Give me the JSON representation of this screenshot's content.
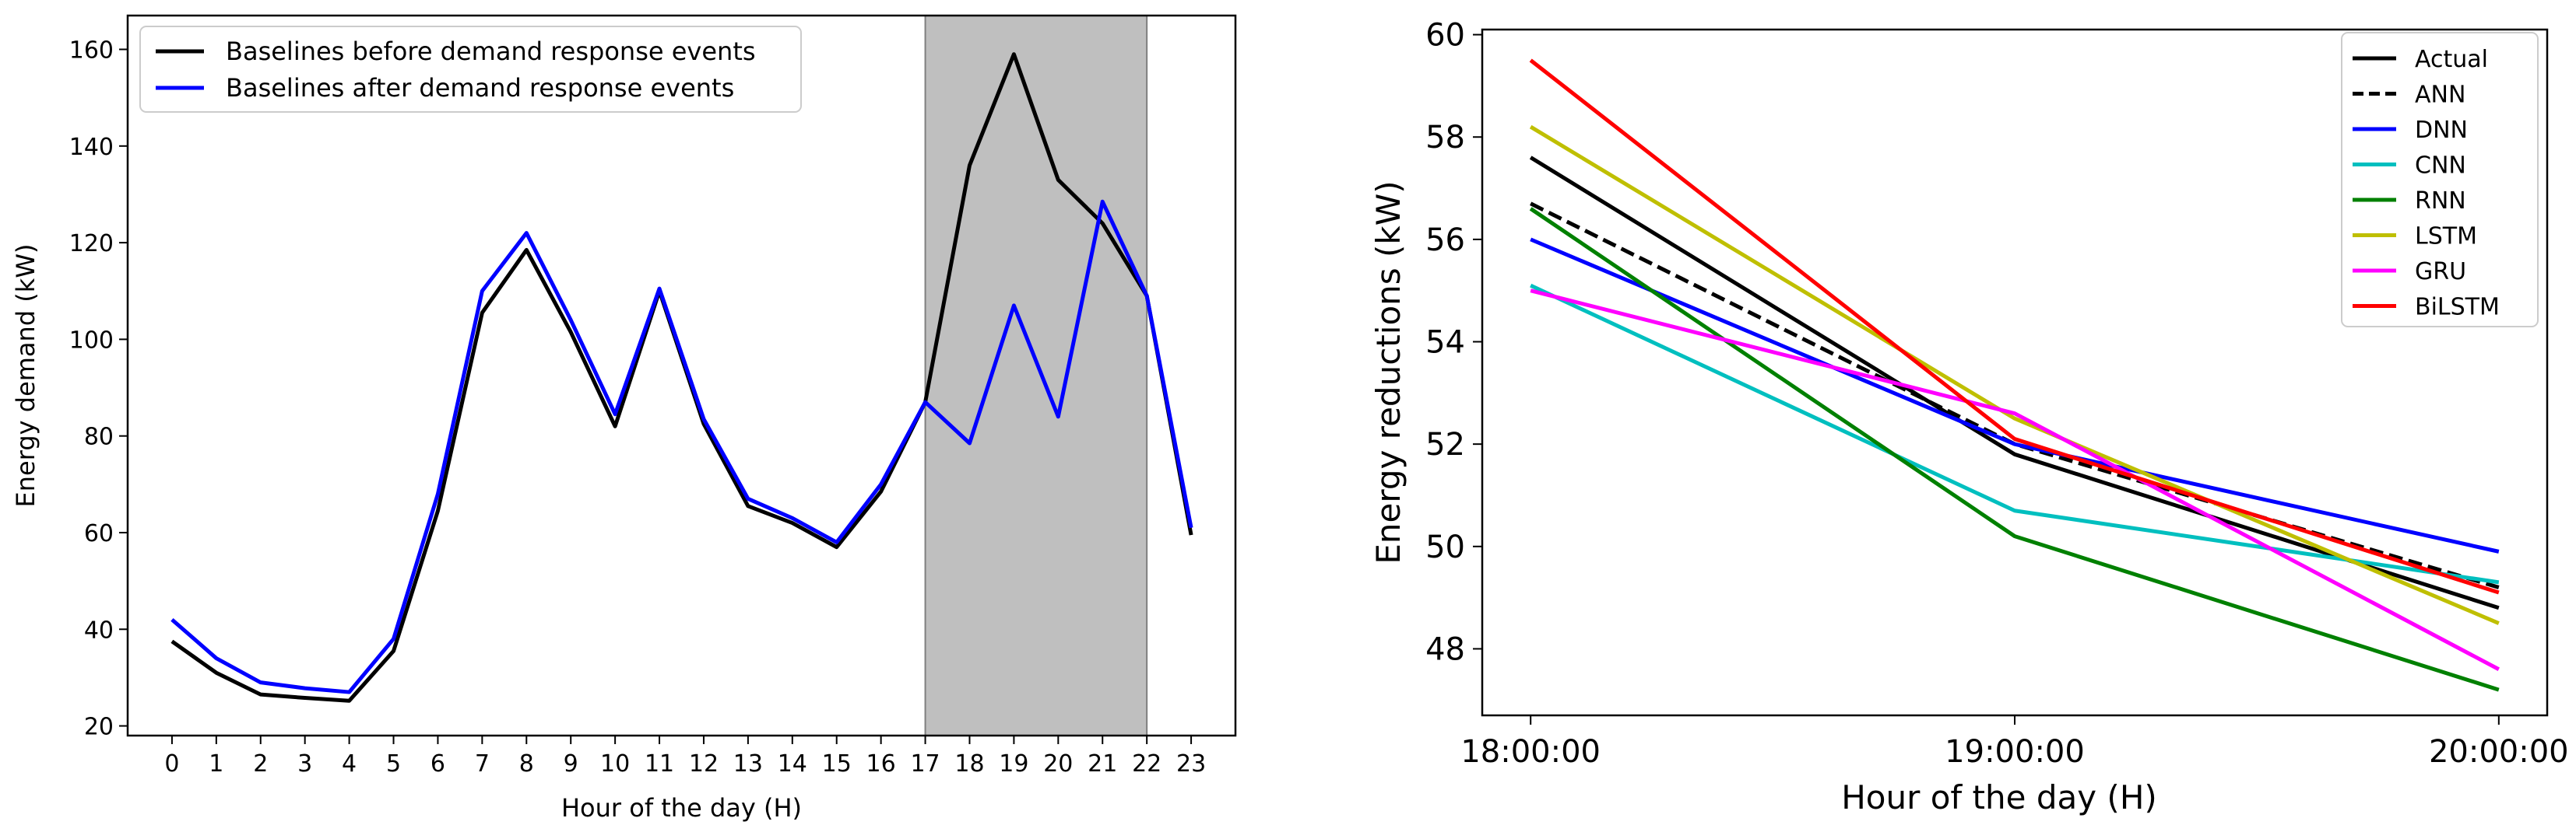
{
  "chart_data": [
    {
      "type": "line",
      "xlabel": "Hour of the day (H)",
      "ylabel": "Energy demand (kW)",
      "x": [
        0,
        1,
        2,
        3,
        4,
        5,
        6,
        7,
        8,
        9,
        10,
        11,
        12,
        13,
        14,
        15,
        16,
        17,
        18,
        19,
        20,
        21,
        22,
        23
      ],
      "xlim": [
        -1,
        24
      ],
      "ylim": [
        18,
        167
      ],
      "yticks": [
        20,
        40,
        60,
        80,
        100,
        120,
        140,
        160
      ],
      "grid": false,
      "legend": "top-left",
      "shaded_region": {
        "x_start": 17,
        "x_end": 22,
        "color": "#bfbfbf"
      },
      "series": [
        {
          "name": "Baselines before demand response events",
          "color": "#000000",
          "values": [
            37.5,
            31,
            26.5,
            25.8,
            25.2,
            35.5,
            64.5,
            105.5,
            118.5,
            101.5,
            82,
            110,
            82.5,
            65.5,
            62,
            57,
            68.5,
            87,
            136,
            159,
            133,
            124,
            109,
            59.5
          ]
        },
        {
          "name": "Baselines after demand response events",
          "color": "#0000ff",
          "values": [
            42,
            34,
            29,
            27.8,
            27,
            38,
            68,
            110,
            122,
            104,
            84.5,
            110.5,
            83.5,
            67,
            63,
            58,
            70,
            87,
            78.5,
            107,
            84,
            128.5,
            109,
            61
          ]
        }
      ]
    },
    {
      "type": "line",
      "xlabel": "Hour of the day (H)",
      "ylabel": "Energy reductions (kW)",
      "categories": [
        "18:00:00",
        "19:00:00",
        "20:00:00"
      ],
      "xlim": [
        -0.1,
        2.1
      ],
      "ylim": [
        46.7,
        60.1
      ],
      "yticks": [
        48,
        50,
        52,
        54,
        56,
        58,
        60
      ],
      "grid": false,
      "legend": "top-right",
      "series": [
        {
          "name": "Actual",
          "color": "#000000",
          "dash": "solid",
          "values": [
            57.6,
            51.8,
            48.8
          ]
        },
        {
          "name": "ANN",
          "color": "#000000",
          "dash": "dashed",
          "values": [
            56.7,
            52.0,
            49.2
          ]
        },
        {
          "name": "DNN",
          "color": "#0000ff",
          "dash": "solid",
          "values": [
            56.0,
            52.0,
            49.9
          ]
        },
        {
          "name": "CNN",
          "color": "#00bfbf",
          "dash": "solid",
          "values": [
            55.1,
            50.7,
            49.3
          ]
        },
        {
          "name": "RNN",
          "color": "#008000",
          "dash": "solid",
          "values": [
            56.6,
            50.2,
            47.2
          ]
        },
        {
          "name": "LSTM",
          "color": "#bfbf00",
          "dash": "solid",
          "values": [
            58.2,
            52.5,
            48.5
          ]
        },
        {
          "name": "GRU",
          "color": "#ff00ff",
          "dash": "solid",
          "values": [
            55.0,
            52.6,
            47.6
          ]
        },
        {
          "name": "BiLSTM",
          "color": "#ff0000",
          "dash": "solid",
          "values": [
            59.5,
            52.1,
            49.1
          ]
        }
      ]
    }
  ]
}
